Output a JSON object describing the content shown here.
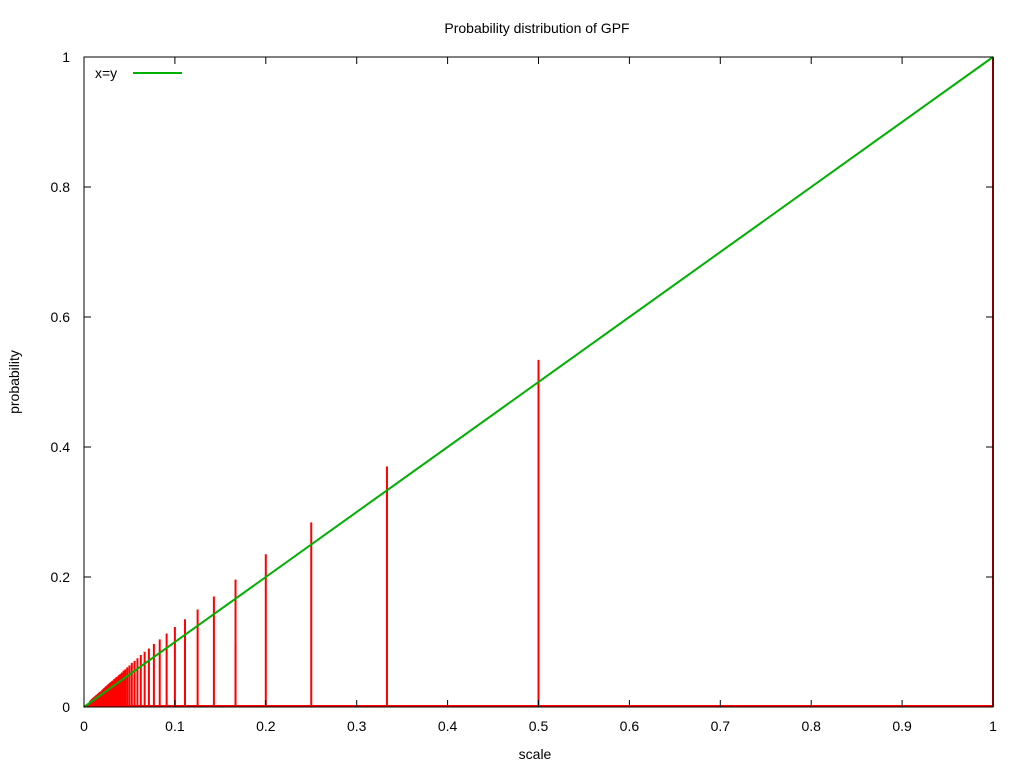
{
  "chart_data": {
    "type": "line",
    "title": "Probability distribution of GPF",
    "xlabel": "scale",
    "ylabel": "probability",
    "xlim": [
      0,
      1
    ],
    "ylim": [
      0,
      1
    ],
    "x_ticks": [
      "0",
      "0.1",
      "0.2",
      "0.3",
      "0.4",
      "0.5",
      "0.6",
      "0.7",
      "0.8",
      "0.9",
      "1"
    ],
    "y_ticks": [
      "0",
      "0.2",
      "0.4",
      "0.6",
      "0.8",
      "1"
    ],
    "grid": false,
    "legend_position": "top-left",
    "series": [
      {
        "name": "x=y",
        "color": "#00b000",
        "x": [
          0.0,
          1.0
        ],
        "y": [
          0.0,
          1.0
        ]
      },
      {
        "color": "#ff0000",
        "style": "impulses",
        "x": [
          1.0,
          0.5,
          0.5,
          0.3333,
          0.25,
          0.2,
          0.1667,
          0.1667,
          0.1429,
          0.125,
          0.1111,
          0.1,
          0.0909,
          0.0833,
          0.0769,
          0.0714,
          0.0667,
          0.0625,
          0.0588,
          0.0556,
          0.0526,
          0.05,
          0.0476,
          0.0455,
          0.0435,
          0.0417,
          0.04,
          0.0385,
          0.037,
          0.0357,
          0.0345,
          0.0333,
          0.0323,
          0.0313,
          0.0303,
          0.0294,
          0.0286,
          0.0278,
          0.027,
          0.0263,
          0.0256,
          0.025,
          0.0244,
          0.0238,
          0.0233,
          0.0227,
          0.0222,
          0.0217,
          0.0213,
          0.0208,
          0.0204,
          0.02,
          0.0185,
          0.0175,
          0.0167,
          0.0159,
          0.0152,
          0.0145,
          0.0139,
          0.0133,
          0.0128,
          0.0122,
          0.0118,
          0.0114,
          0.011,
          0.0106,
          0.0102,
          0.0099,
          0.0095,
          0.0092,
          0.009,
          0.0087,
          0.0085,
          0.0082,
          0.008,
          0.0078,
          0.0076,
          0.0074,
          0.0072,
          0.007,
          0.0068
        ],
        "y": [
          1.0,
          0.534,
          0.268,
          0.37,
          0.284,
          0.235,
          0.196,
          0.098,
          0.17,
          0.15,
          0.135,
          0.123,
          0.113,
          0.104,
          0.097,
          0.09,
          0.085,
          0.08,
          0.075,
          0.071,
          0.068,
          0.064,
          0.061,
          0.058,
          0.056,
          0.053,
          0.051,
          0.049,
          0.047,
          0.046,
          0.044,
          0.043,
          0.041,
          0.04,
          0.039,
          0.038,
          0.037,
          0.036,
          0.035,
          0.034,
          0.033,
          0.032,
          0.032,
          0.031,
          0.03,
          0.029,
          0.029,
          0.028,
          0.027,
          0.027,
          0.026,
          0.026,
          0.024,
          0.023,
          0.022,
          0.021,
          0.02,
          0.019,
          0.018,
          0.018,
          0.017,
          0.016,
          0.016,
          0.015,
          0.015,
          0.014,
          0.014,
          0.013,
          0.013,
          0.012,
          0.012,
          0.012,
          0.011,
          0.011,
          0.011,
          0.01,
          0.01,
          0.01,
          0.01,
          0.009,
          0.009
        ]
      }
    ]
  }
}
